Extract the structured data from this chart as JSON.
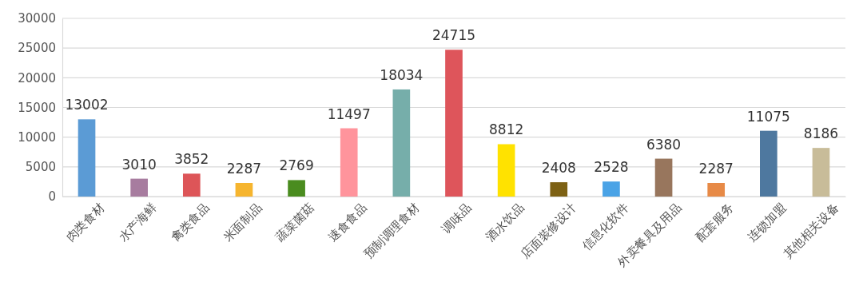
{
  "chart_data": {
    "type": "bar",
    "categories": [
      "肉类食材",
      "水产海鲜",
      "禽类食品",
      "米面制品",
      "蔬菜菌菇",
      "速食食品",
      "预制调理食材",
      "调味品",
      "酒水饮品",
      "店面装修设计",
      "信息化软件",
      "外卖餐具及用品",
      "配套服务",
      "连锁加盟",
      "其他相关设备"
    ],
    "values": [
      13002,
      3010,
      3852,
      2287,
      2769,
      11497,
      18034,
      24715,
      8812,
      2408,
      2528,
      6380,
      2287,
      11075,
      8186
    ],
    "colors": [
      "#5b9bd5",
      "#a77c9f",
      "#dd5558",
      "#f6b52f",
      "#4a8c1f",
      "#ff949c",
      "#76aeaa",
      "#de555b",
      "#ffe200",
      "#7d6114",
      "#4aa3e6",
      "#98765d",
      "#e78a47",
      "#4e789f",
      "#c8bc99"
    ],
    "ylim": [
      0,
      30000
    ],
    "yticks": [
      0,
      5000,
      10000,
      15000,
      20000,
      25000,
      30000
    ],
    "grid": "y",
    "data_labels": true
  }
}
